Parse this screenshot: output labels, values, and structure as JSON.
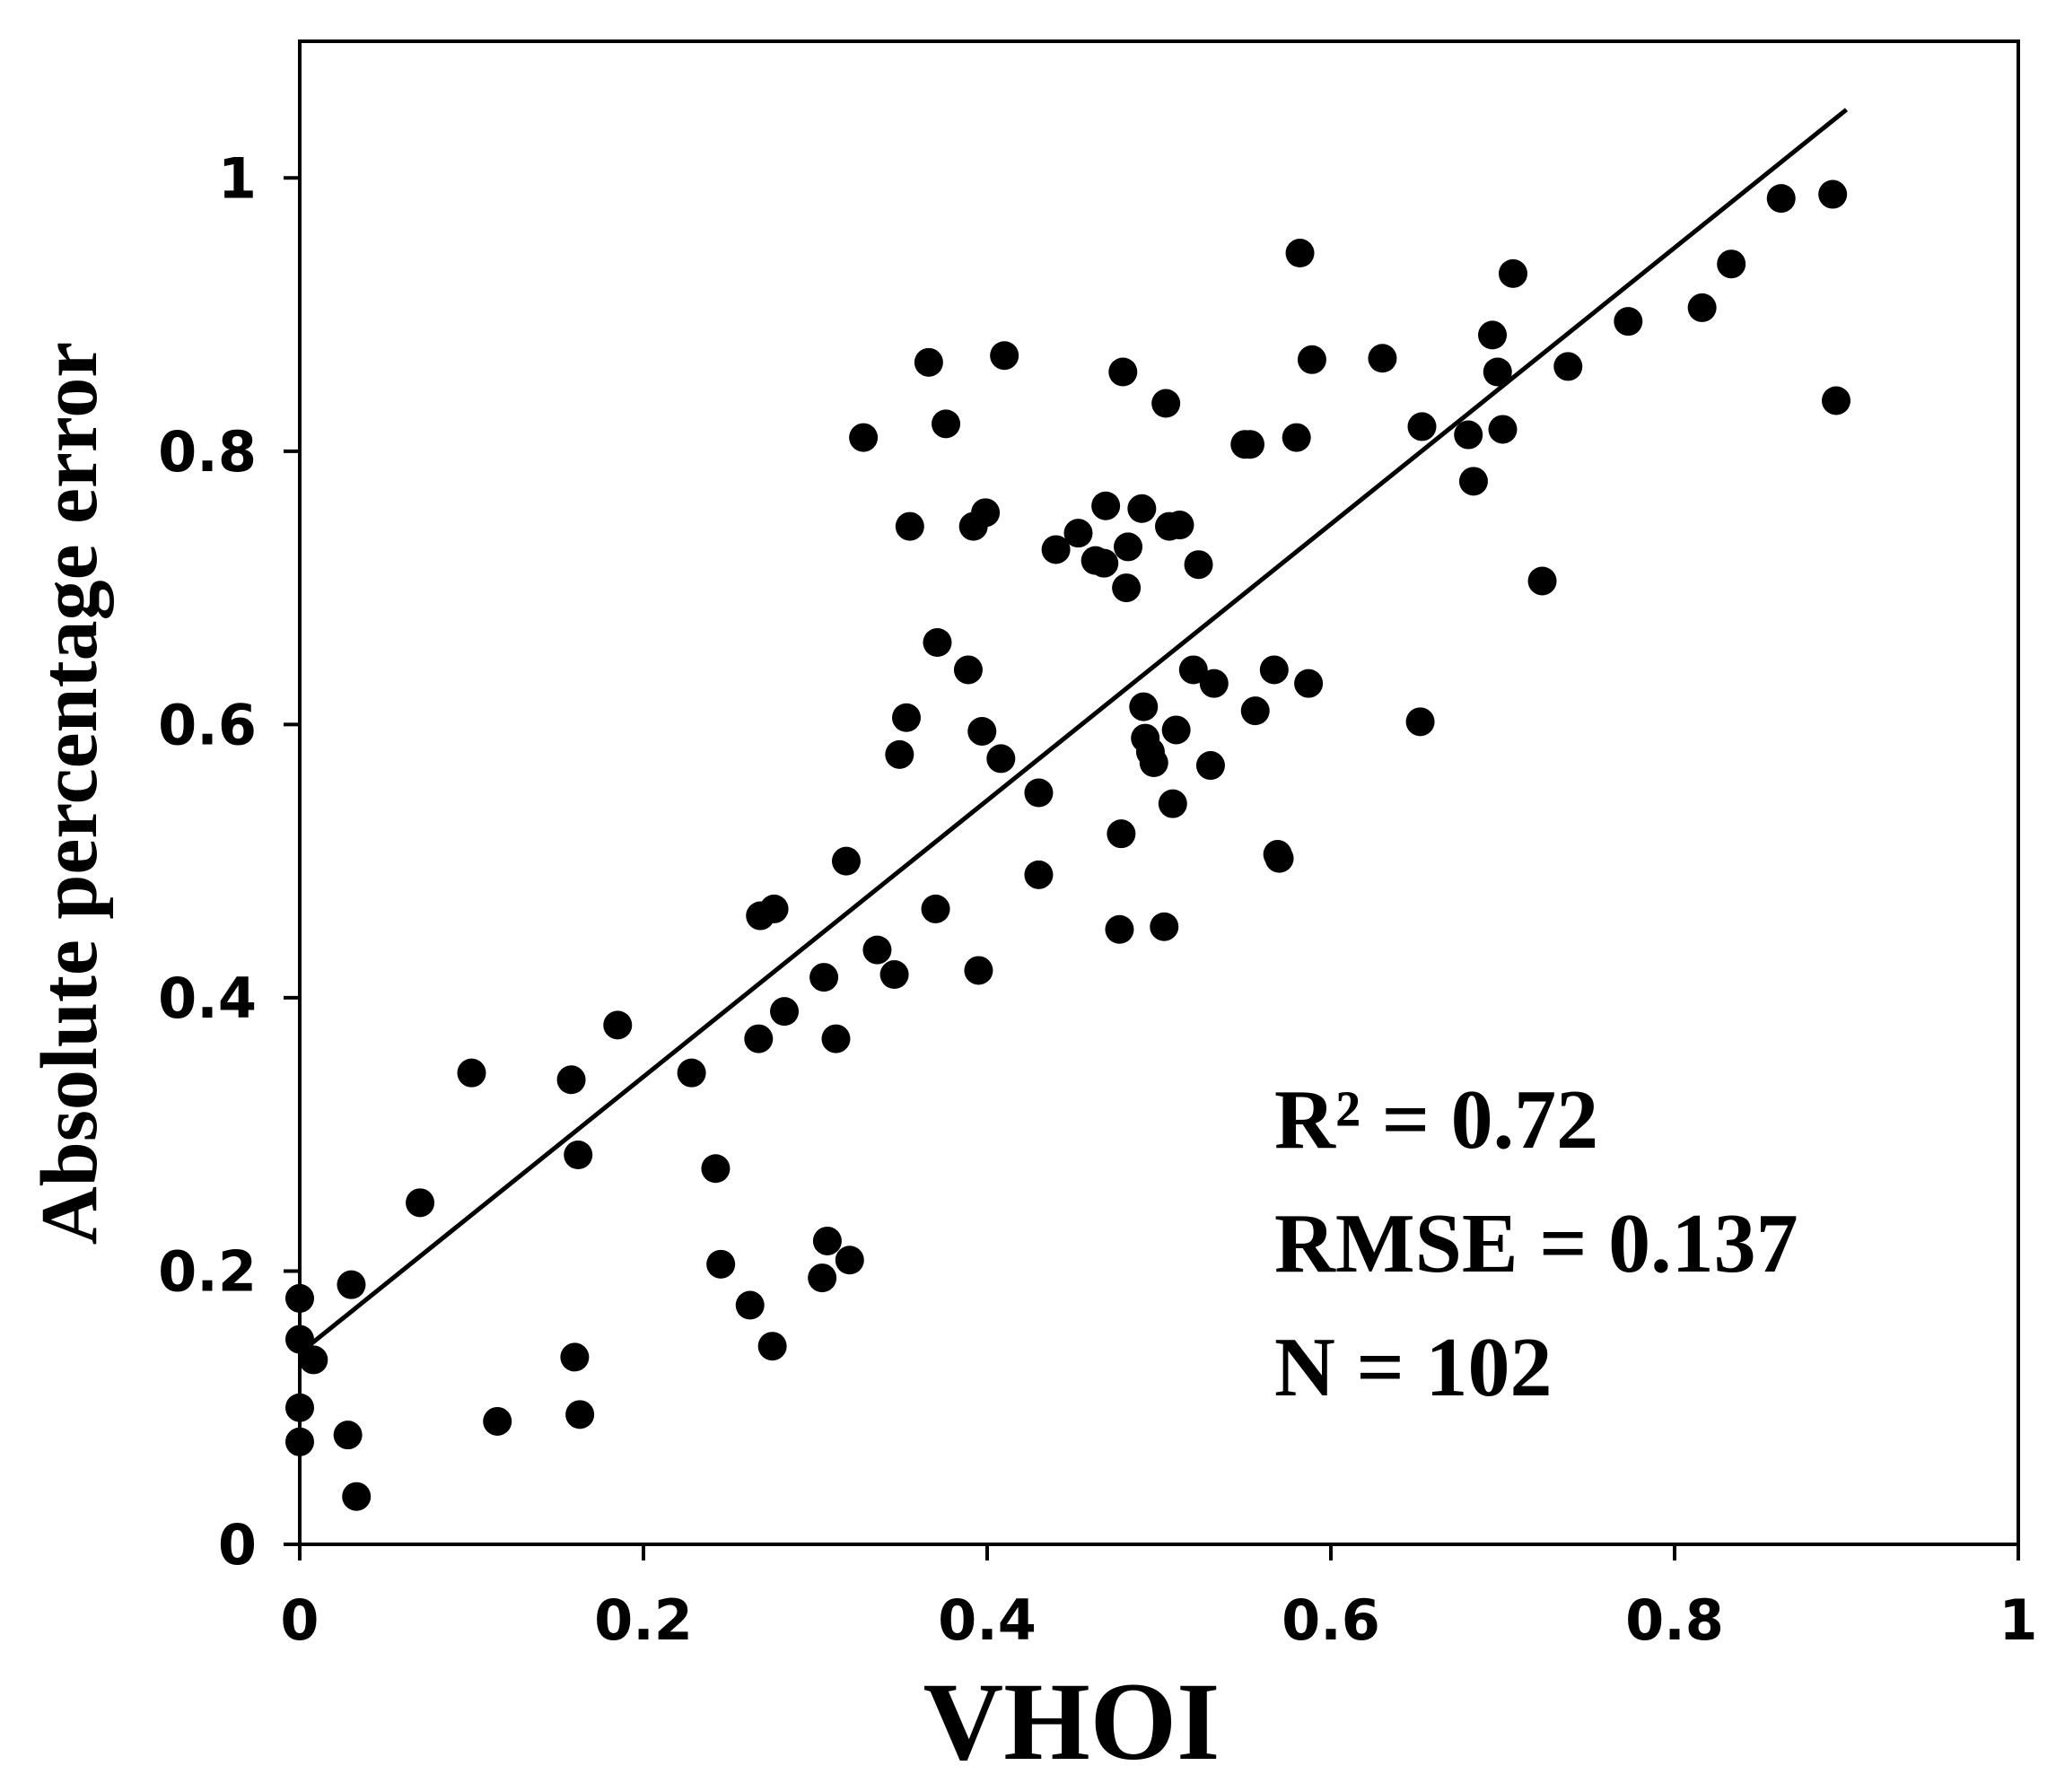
{
  "chart_data": {
    "type": "scatter",
    "title": "",
    "xlabel": "VHOI",
    "ylabel": "Absolute percentage  error",
    "xlim": [
      0,
      1
    ],
    "ylim": [
      0,
      1.1
    ],
    "x_ticks": [
      "0",
      "0.2",
      "0.4",
      "0.6",
      "0.8",
      "1"
    ],
    "y_ticks": [
      "0",
      "0.2",
      "0.4",
      "0.6",
      "0.8",
      "1"
    ],
    "grid": false,
    "trendline": {
      "type": "linear",
      "x_start": 0.0,
      "y_start": 0.14,
      "x_end": 0.9,
      "y_end": 1.05
    },
    "annotations": [
      "R² = 0.72",
      "RMSE = 0.137",
      "N = 102"
    ],
    "points": [
      [
        0.0,
        0.18
      ],
      [
        0.0,
        0.15
      ],
      [
        0.0,
        0.1
      ],
      [
        0.0,
        0.075
      ],
      [
        0.008,
        0.135
      ],
      [
        0.028,
        0.08
      ],
      [
        0.03,
        0.19
      ],
      [
        0.033,
        0.035
      ],
      [
        0.07,
        0.25
      ],
      [
        0.1,
        0.345
      ],
      [
        0.115,
        0.09
      ],
      [
        0.158,
        0.34
      ],
      [
        0.16,
        0.137
      ],
      [
        0.162,
        0.285
      ],
      [
        0.163,
        0.095
      ],
      [
        0.185,
        0.38
      ],
      [
        0.228,
        0.345
      ],
      [
        0.242,
        0.275
      ],
      [
        0.245,
        0.205
      ],
      [
        0.262,
        0.175
      ],
      [
        0.267,
        0.37
      ],
      [
        0.268,
        0.46
      ],
      [
        0.275,
        0.145
      ],
      [
        0.276,
        0.465
      ],
      [
        0.282,
        0.39
      ],
      [
        0.304,
        0.195
      ],
      [
        0.305,
        0.415
      ],
      [
        0.307,
        0.222
      ],
      [
        0.312,
        0.37
      ],
      [
        0.318,
        0.5
      ],
      [
        0.32,
        0.208
      ],
      [
        0.328,
        0.81
      ],
      [
        0.336,
        0.435
      ],
      [
        0.346,
        0.417
      ],
      [
        0.349,
        0.578
      ],
      [
        0.353,
        0.605
      ],
      [
        0.355,
        0.745
      ],
      [
        0.366,
        0.865
      ],
      [
        0.37,
        0.465
      ],
      [
        0.371,
        0.66
      ],
      [
        0.376,
        0.82
      ],
      [
        0.389,
        0.64
      ],
      [
        0.392,
        0.745
      ],
      [
        0.395,
        0.42
      ],
      [
        0.397,
        0.595
      ],
      [
        0.399,
        0.755
      ],
      [
        0.408,
        0.575
      ],
      [
        0.41,
        0.87
      ],
      [
        0.43,
        0.55
      ],
      [
        0.43,
        0.49
      ],
      [
        0.44,
        0.728
      ],
      [
        0.453,
        0.74
      ],
      [
        0.463,
        0.72
      ],
      [
        0.468,
        0.718
      ],
      [
        0.469,
        0.76
      ],
      [
        0.477,
        0.45
      ],
      [
        0.478,
        0.52
      ],
      [
        0.479,
        0.858
      ],
      [
        0.481,
        0.7
      ],
      [
        0.482,
        0.73
      ],
      [
        0.49,
        0.758
      ],
      [
        0.491,
        0.613
      ],
      [
        0.492,
        0.59
      ],
      [
        0.495,
        0.58
      ],
      [
        0.497,
        0.572
      ],
      [
        0.503,
        0.452
      ],
      [
        0.504,
        0.835
      ],
      [
        0.506,
        0.745
      ],
      [
        0.508,
        0.542
      ],
      [
        0.51,
        0.596
      ],
      [
        0.512,
        0.746
      ],
      [
        0.52,
        0.64
      ],
      [
        0.523,
        0.717
      ],
      [
        0.53,
        0.57
      ],
      [
        0.532,
        0.63
      ],
      [
        0.55,
        0.805
      ],
      [
        0.553,
        0.805
      ],
      [
        0.556,
        0.61
      ],
      [
        0.567,
        0.64
      ],
      [
        0.569,
        0.505
      ],
      [
        0.57,
        0.502
      ],
      [
        0.58,
        0.81
      ],
      [
        0.582,
        0.945
      ],
      [
        0.587,
        0.63
      ],
      [
        0.589,
        0.867
      ],
      [
        0.63,
        0.868
      ],
      [
        0.652,
        0.602
      ],
      [
        0.653,
        0.818
      ],
      [
        0.68,
        0.812
      ],
      [
        0.683,
        0.778
      ],
      [
        0.694,
        0.885
      ],
      [
        0.697,
        0.858
      ],
      [
        0.7,
        0.816
      ],
      [
        0.706,
        0.93
      ],
      [
        0.723,
        0.705
      ],
      [
        0.738,
        0.862
      ],
      [
        0.773,
        0.895
      ],
      [
        0.816,
        0.905
      ],
      [
        0.833,
        0.937
      ],
      [
        0.862,
        0.985
      ],
      [
        0.892,
        0.988
      ],
      [
        0.894,
        0.837
      ]
    ]
  }
}
